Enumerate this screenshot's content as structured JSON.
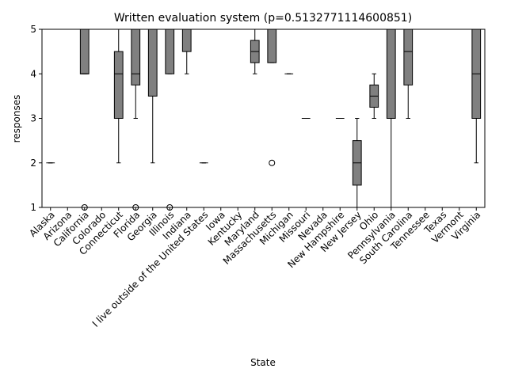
{
  "chart_data": {
    "type": "box",
    "title": "Written evaluation system (p=0.5132771114600851)",
    "xlabel": "State",
    "ylabel": "responses",
    "categories": [
      "Alaska",
      "Arizona",
      "California",
      "Colorado",
      "Connecticut",
      "Florida",
      "Georgia",
      "Illinois",
      "Indiana",
      "I live outside of the United States",
      "Iowa",
      "Kentucky",
      "Maryland",
      "Massachusetts",
      "Michigan",
      "Missouri",
      "Nevada",
      "New Hampshire",
      "New Jersey",
      "Ohio",
      "Pennsylvania",
      "South Carolina",
      "Tennessee",
      "Texas",
      "Vermont",
      "Virginia"
    ],
    "whislo": [
      2,
      5,
      4,
      5,
      2,
      3,
      2,
      4,
      4,
      2,
      5,
      1,
      4,
      4.25,
      4,
      3,
      5,
      3,
      1,
      3,
      1,
      3,
      5,
      5,
      1,
      2
    ],
    "q1": [
      2,
      5,
      4,
      5,
      3,
      3.75,
      3.5,
      4,
      4.5,
      2,
      5,
      1,
      4.25,
      4.25,
      4,
      3,
      5,
      3,
      1.5,
      3.25,
      3,
      3.75,
      5,
      5,
      1,
      3
    ],
    "med": [
      2,
      5,
      4,
      5,
      4,
      4,
      5,
      5,
      5,
      2,
      5,
      1,
      4.5,
      5,
      4,
      3,
      5,
      3,
      2,
      3.5,
      5,
      4.5,
      5,
      5,
      1,
      4
    ],
    "q3": [
      2,
      5,
      5,
      5,
      4.5,
      5,
      5,
      5,
      5,
      2,
      5,
      1,
      4.75,
      5,
      4,
      3,
      5,
      3,
      2.5,
      3.75,
      5,
      5,
      5,
      5,
      1,
      5
    ],
    "whishi": [
      2,
      5,
      5,
      5,
      5,
      5,
      5,
      5,
      5,
      2,
      5,
      1,
      5,
      5,
      4,
      3,
      5,
      3,
      3,
      4,
      5,
      5,
      5,
      5,
      1,
      5
    ],
    "fliers": [
      [],
      [],
      [
        1
      ],
      [],
      [],
      [
        1
      ],
      [],
      [
        1
      ],
      [],
      [],
      [],
      [],
      [],
      [
        2
      ],
      [],
      [],
      [],
      [],
      [],
      [],
      [],
      [],
      [],
      [],
      [],
      []
    ],
    "color": "#808080",
    "ylim": [
      1,
      5
    ],
    "yticks": [
      1,
      2,
      3,
      4,
      5
    ]
  }
}
